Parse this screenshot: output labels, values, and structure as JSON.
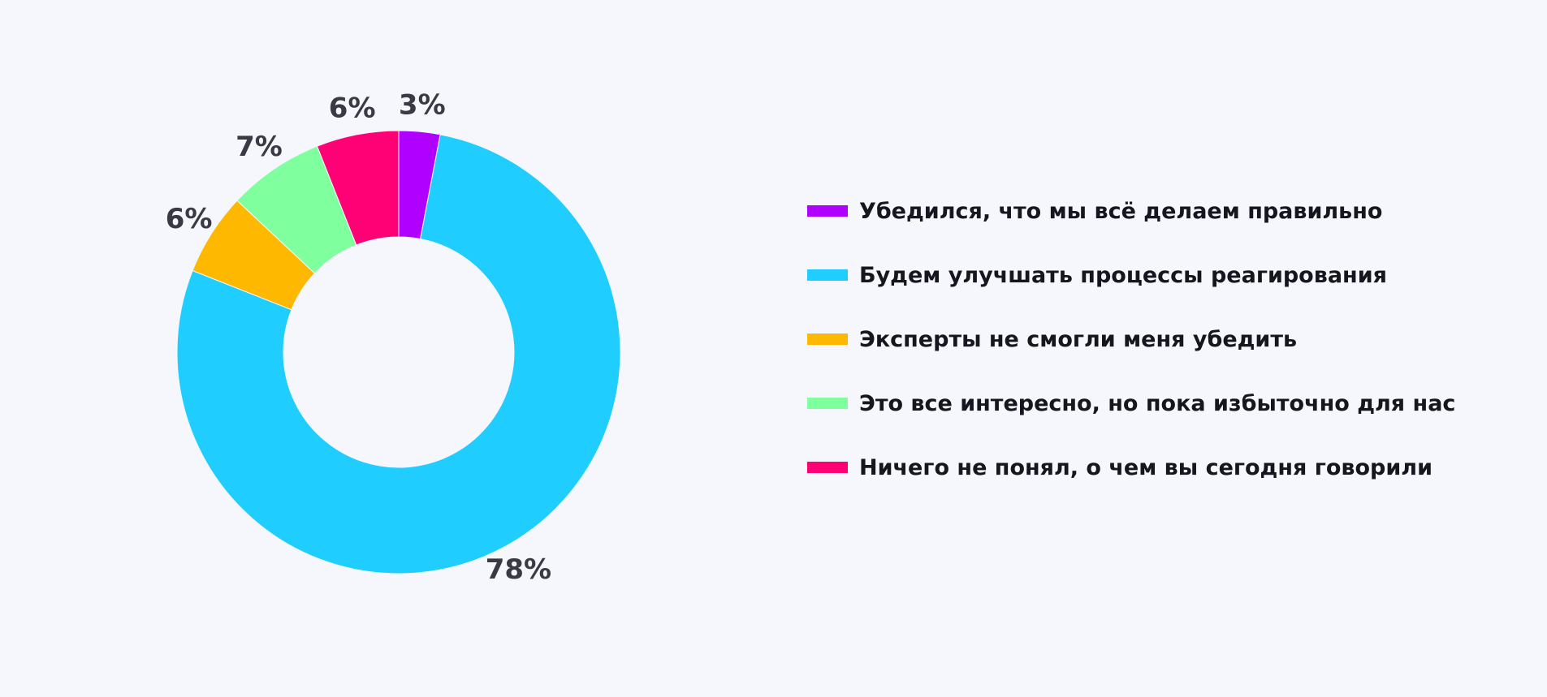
{
  "chart_data": {
    "type": "pie",
    "variant": "donut",
    "title": "",
    "legend_position": "right",
    "series": [
      {
        "name": "Убедился, что мы всё делаем правильно",
        "value": 3,
        "label": "3%",
        "color": "#b000ff"
      },
      {
        "name": "Будем улучшать процессы реагирования",
        "value": 78,
        "label": "78%",
        "color": "#1fcdff"
      },
      {
        "name": "Эксперты не смогли меня убедить",
        "value": 6,
        "label": "6%",
        "color": "#ffb800"
      },
      {
        "name": "Это все интересно, но пока избыточно для нас",
        "value": 7,
        "label": "7%",
        "color": "#80ff9f"
      },
      {
        "name": "Ничего не понял, о чем вы сегодня говорили",
        "value": 6,
        "label": "6%",
        "color": "#ff0075"
      }
    ]
  }
}
